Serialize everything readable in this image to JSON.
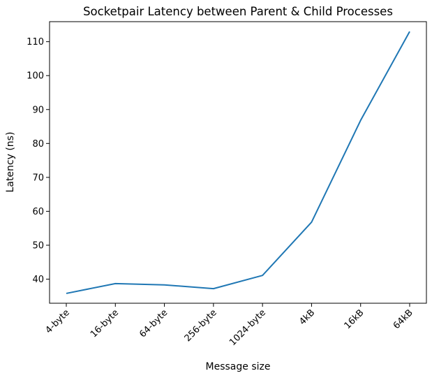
{
  "chart_data": {
    "type": "line",
    "title": "Socketpair Latency between Parent & Child Processes",
    "xlabel": "Message size",
    "ylabel": "Latency (ns)",
    "categories": [
      "4-byte",
      "16-byte",
      "64-byte",
      "256-byte",
      "1024-byte",
      "4kB",
      "16kB",
      "64kB"
    ],
    "series": [
      {
        "values": [
          35.8,
          38.7,
          38.3,
          37.2,
          41.1,
          56.8,
          86.8,
          113.0
        ],
        "color": "#1f77b4"
      }
    ],
    "yticks": [
      40,
      50,
      60,
      70,
      80,
      90,
      100,
      110
    ],
    "ylim": [
      32.9,
      115.9
    ],
    "grid": false,
    "legend": "none"
  }
}
